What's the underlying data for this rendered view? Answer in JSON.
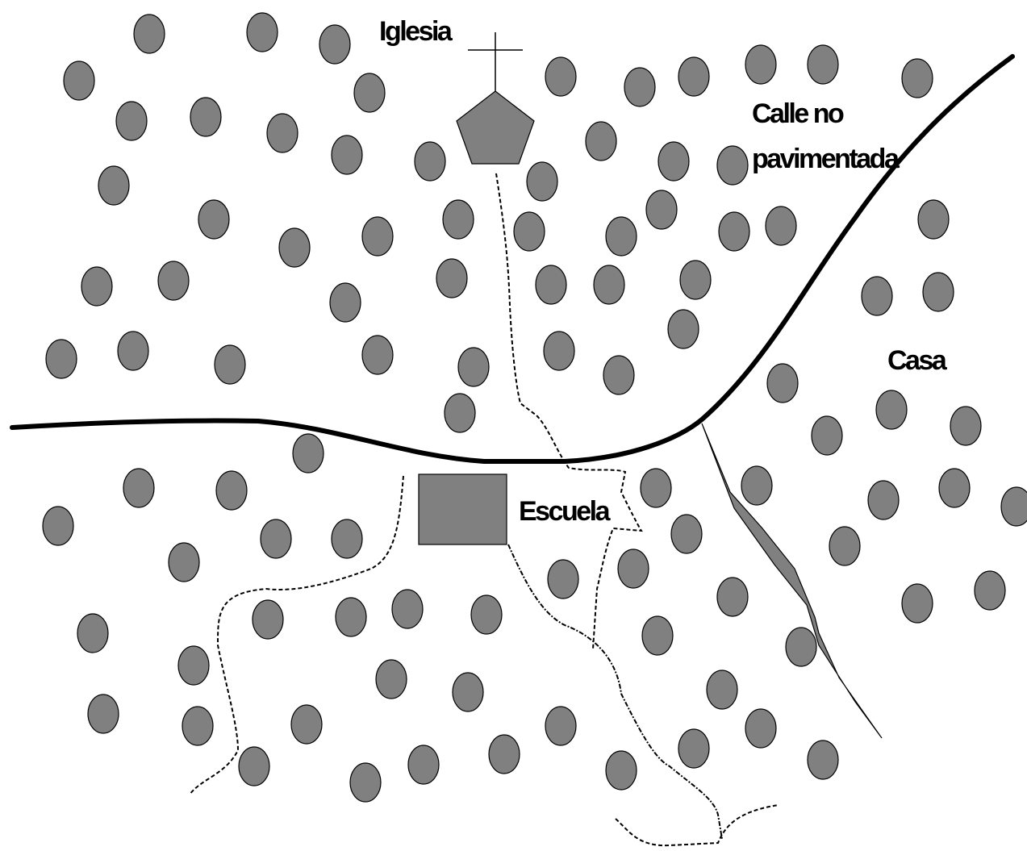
{
  "labels": {
    "church": "Iglesia",
    "road": [
      "Calle no",
      "pavimentada"
    ],
    "house": "Casa",
    "school": "Escuela"
  }
}
